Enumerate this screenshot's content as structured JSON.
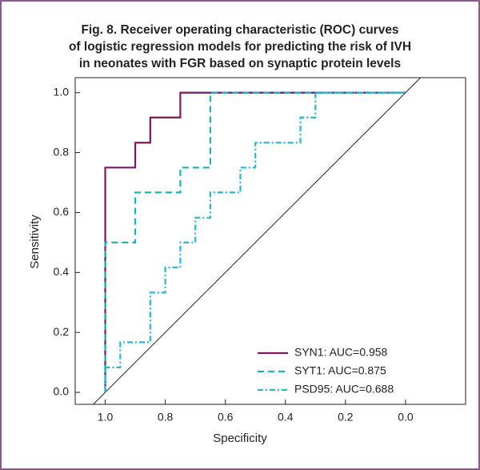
{
  "chart_data": {
    "type": "line",
    "title": [
      "Fig. 8. Receiver operating characteristic (ROC) curves",
      "of logistic regression models for predicting the risk of IVH",
      "in neonates with FGR based on synaptic protein levels"
    ],
    "xlabel": "Specificity",
    "ylabel": "Sensitivity",
    "xlim": [
      1.1,
      -0.2
    ],
    "ylim": [
      -0.04,
      1.05
    ],
    "xticks": [
      {
        "value": 1,
        "label": "1.0"
      },
      0.8,
      0.6,
      0.4,
      0.2,
      {
        "value": 0,
        "label": "0.0"
      }
    ],
    "yticks": [
      {
        "value": 0,
        "label": "0.0"
      },
      0.2,
      0.4,
      0.6,
      0.8,
      {
        "value": 1,
        "label": "1.0"
      }
    ],
    "legend": "lower right",
    "reference": {
      "color": "#222222",
      "x": [
        1.04,
        -0.05
      ],
      "y": [
        -0.04,
        1.05
      ]
    },
    "series": [
      {
        "name": "SYN1: AUC=0.958",
        "color": "#7b1a5e",
        "style": "solid",
        "x": [
          1,
          1,
          0.9,
          0.9,
          0.85,
          0.85,
          0.75,
          0.75,
          0
        ],
        "values": [
          0,
          0.75,
          0.75,
          0.833,
          0.833,
          0.917,
          0.917,
          1,
          1
        ]
      },
      {
        "name": "SYT1: AUC=0.875",
        "color": "#1eb4ae",
        "style": "dashed",
        "x": [
          1,
          1,
          0.9,
          0.9,
          0.75,
          0.75,
          0.65,
          0.65,
          0
        ],
        "values": [
          0,
          0.5,
          0.5,
          0.667,
          0.667,
          0.75,
          0.75,
          1,
          1
        ]
      },
      {
        "name": "PSD95: AUC=0.688",
        "color": "#2ab6cc",
        "style": "dashdot",
        "x": [
          1,
          1,
          0.95,
          0.95,
          0.85,
          0.85,
          0.8,
          0.8,
          0.75,
          0.75,
          0.7,
          0.7,
          0.65,
          0.65,
          0.55,
          0.55,
          0.5,
          0.5,
          0.35,
          0.35,
          0.3,
          0.3,
          0
        ],
        "values": [
          0,
          0.083,
          0.083,
          0.167,
          0.167,
          0.333,
          0.333,
          0.417,
          0.417,
          0.5,
          0.5,
          0.583,
          0.583,
          0.667,
          0.667,
          0.75,
          0.75,
          0.833,
          0.833,
          0.917,
          0.917,
          1,
          1
        ]
      }
    ]
  }
}
